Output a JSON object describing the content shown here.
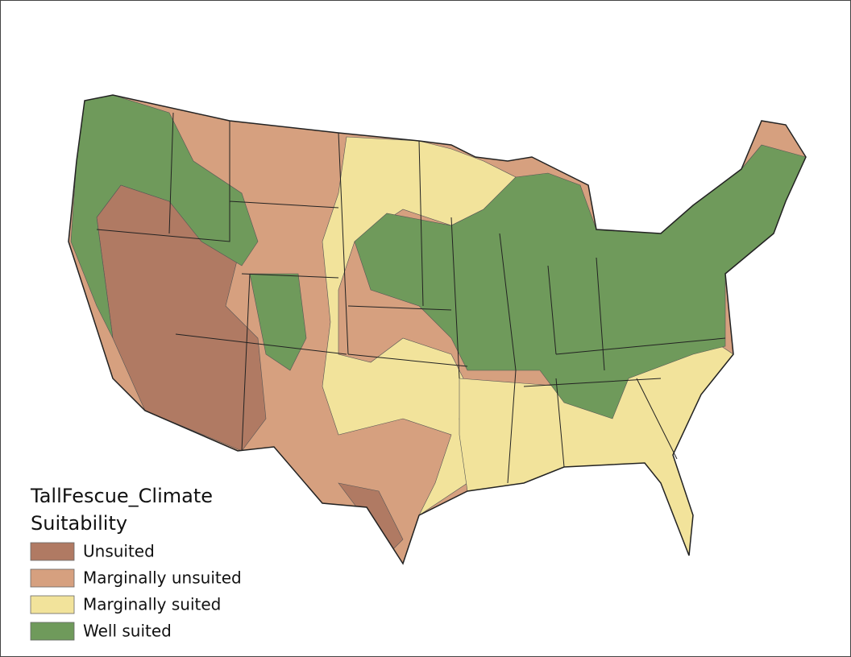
{
  "legend": {
    "title": "TallFescue_Climate",
    "subtitle": "Suitability",
    "items": [
      {
        "label": "Unsuited",
        "color": "#b07a63"
      },
      {
        "label": "Marginally unsuited",
        "color": "#d6a07f"
      },
      {
        "label": "Marginally suited",
        "color": "#f2e39b"
      },
      {
        "label": "Well suited",
        "color": "#6f9a5b"
      }
    ]
  }
}
